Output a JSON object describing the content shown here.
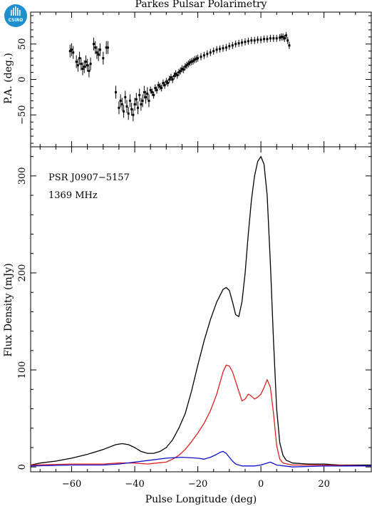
{
  "logo": {
    "text": "CSIRO",
    "color": "#1f8fcf"
  },
  "chart_data": [
    {
      "type": "scatter",
      "title": "Parkes Pulsar Polarimetry",
      "ylabel": "P.A. (deg.)",
      "xlim": [
        -73,
        35
      ],
      "ylim": [
        -95,
        95
      ],
      "yticks": [
        -50,
        0,
        50
      ],
      "xticks": [
        -60,
        -40,
        -20,
        0,
        20
      ],
      "error_bars": true,
      "color": "#000000",
      "series": [
        {
          "x": [
            -60.5,
            -60,
            -59.5,
            -58.5,
            -58,
            -57.5,
            -57,
            -56.5,
            -56,
            -55.5,
            -55,
            -54.5,
            -54,
            -53,
            -52.5,
            -52,
            -51.5,
            -51,
            -50,
            -49,
            -48.5,
            -46,
            -45,
            -44.5,
            -44,
            -43.5,
            -43,
            -42.5,
            -42,
            -41.5,
            -41,
            -40.5,
            -40,
            -39.5,
            -39,
            -38.5,
            -38,
            -37.5,
            -37,
            -36.5,
            -36,
            -35.5,
            -35,
            -34.5,
            -34,
            -33.5,
            -33,
            -32.5,
            -32,
            -31.5,
            -31,
            -30.5,
            -30,
            -29.5,
            -29,
            -28.5,
            -28,
            -27.5,
            -27,
            -26.5,
            -26,
            -25.5,
            -25,
            -24.5,
            -24,
            -23.5,
            -23,
            -22.5,
            -22,
            -21.5,
            -21,
            -20.5,
            -20,
            -19,
            -18,
            -17,
            -16,
            -15,
            -14,
            -13,
            -12,
            -11,
            -10,
            -9,
            -8,
            -7,
            -6,
            -5,
            -4,
            -3,
            -2,
            -1,
            0,
            1,
            2,
            3,
            4,
            5,
            6,
            6.5,
            7,
            7.5,
            8,
            8.5,
            9
          ],
          "y": [
            40,
            42,
            38,
            25,
            20,
            30,
            22,
            15,
            18,
            25,
            20,
            12,
            22,
            50,
            45,
            38,
            35,
            42,
            30,
            45,
            45,
            -18,
            -40,
            -30,
            -35,
            -45,
            -25,
            -38,
            -48,
            -30,
            -42,
            -50,
            -35,
            -28,
            -40,
            -22,
            -35,
            -30,
            -18,
            -25,
            -20,
            -30,
            -15,
            -18,
            -22,
            -12,
            -15,
            -8,
            -10,
            -12,
            -5,
            -8,
            -3,
            -5,
            0,
            3,
            0,
            5,
            8,
            6,
            10,
            12,
            15,
            14,
            18,
            20,
            22,
            24,
            25,
            26,
            28,
            29,
            30,
            32,
            34,
            36,
            38,
            40,
            42,
            43,
            44,
            45,
            47,
            48,
            50,
            51,
            52,
            53,
            54,
            55,
            55,
            56,
            56,
            57,
            57,
            58,
            58,
            58,
            59,
            60,
            60,
            58,
            62,
            55,
            48
          ]
        }
      ]
    },
    {
      "type": "line",
      "title": "",
      "xlabel": "Pulse Longitude (deg)",
      "ylabel": "Flux Density (mJy)",
      "xlim": [
        -73,
        35
      ],
      "ylim": [
        -5,
        330
      ],
      "xticks": [
        -60,
        -40,
        -20,
        0,
        20
      ],
      "yticks": [
        0,
        100,
        200,
        300
      ],
      "annotations": [
        "PSR J0907−5157",
        "1369 MHz"
      ],
      "series": [
        {
          "color": "#000000",
          "x": [
            -73,
            -70,
            -65,
            -60,
            -55,
            -50,
            -46,
            -44,
            -42,
            -40,
            -38,
            -36,
            -34,
            -32,
            -30,
            -28,
            -26,
            -24,
            -22,
            -20,
            -18,
            -16,
            -14,
            -12,
            -11,
            -10,
            -9,
            -8,
            -7,
            -6,
            -5,
            -4,
            -3,
            -2,
            -1,
            0,
            1,
            2,
            3,
            4,
            5,
            6,
            7,
            8,
            10,
            15,
            20,
            25,
            30,
            35
          ],
          "y": [
            2,
            4,
            6,
            9,
            13,
            18,
            23,
            24,
            23,
            20,
            16,
            14,
            14,
            16,
            20,
            28,
            40,
            55,
            78,
            105,
            130,
            152,
            170,
            183,
            185,
            182,
            170,
            157,
            155,
            170,
            200,
            240,
            275,
            300,
            315,
            320,
            312,
            280,
            210,
            130,
            60,
            25,
            12,
            7,
            4,
            3,
            3,
            2,
            2,
            2
          ]
        },
        {
          "color": "#e02020",
          "x": [
            -73,
            -60,
            -50,
            -45,
            -40,
            -36,
            -33,
            -30,
            -28,
            -26,
            -24,
            -22,
            -20,
            -18,
            -16,
            -14,
            -12,
            -11,
            -10,
            -9,
            -8,
            -7,
            -6,
            -5,
            -4,
            -3,
            -2,
            -1,
            0,
            1,
            2,
            3,
            4,
            5,
            6,
            7,
            10,
            20,
            35
          ],
          "y": [
            2,
            3,
            3,
            4,
            4,
            3,
            4,
            5,
            8,
            12,
            18,
            26,
            35,
            45,
            58,
            75,
            98,
            105,
            104,
            98,
            88,
            78,
            68,
            70,
            75,
            73,
            70,
            72,
            75,
            82,
            90,
            82,
            55,
            22,
            8,
            4,
            2,
            2,
            1
          ]
        },
        {
          "color": "#1010d0",
          "x": [
            -73,
            -60,
            -50,
            -45,
            -40,
            -35,
            -30,
            -25,
            -20,
            -18,
            -16,
            -14,
            -13,
            -12,
            -11,
            -10,
            -9,
            -8,
            -6,
            -4,
            -2,
            0,
            2,
            3,
            5,
            10,
            20,
            35
          ],
          "y": [
            1,
            2,
            2,
            3,
            5,
            7,
            9,
            10,
            9,
            8,
            10,
            13,
            15,
            16,
            14,
            10,
            6,
            3,
            1,
            1,
            1,
            2,
            4,
            5,
            2,
            0,
            1,
            1
          ]
        }
      ]
    }
  ]
}
